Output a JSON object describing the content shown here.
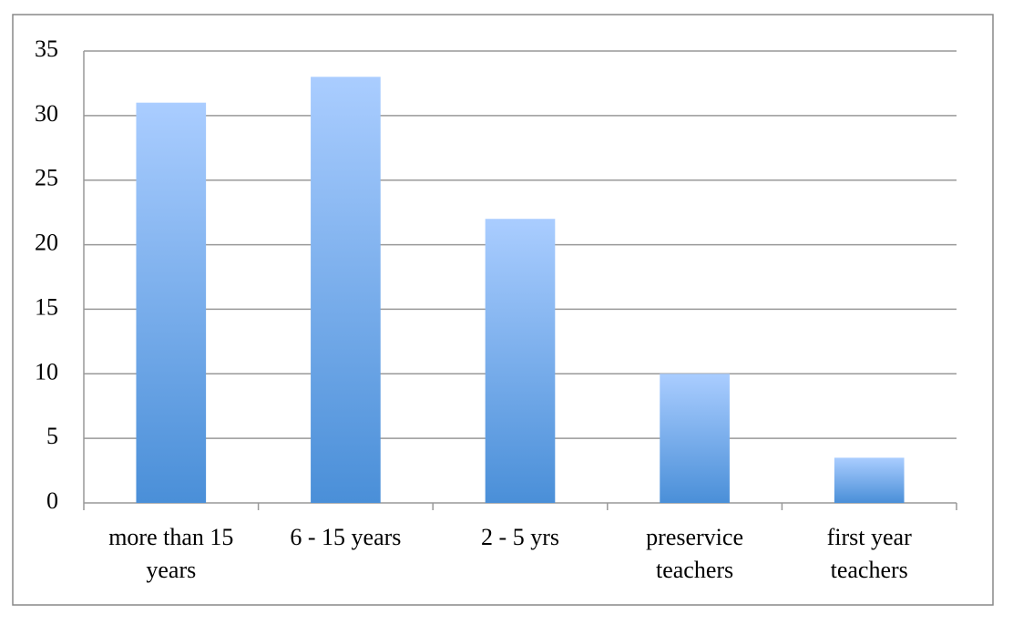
{
  "chart_data": {
    "type": "bar",
    "categories": [
      "more than 15 years",
      "6 - 15 years",
      "2 - 5 yrs",
      "preservice teachers",
      "first year teachers"
    ],
    "values": [
      31,
      33,
      22,
      10,
      3.5
    ],
    "gradient": [
      "#aacdff",
      "#4a8fd8"
    ],
    "ylim": [
      0,
      35
    ],
    "yticks": [
      0,
      5,
      10,
      15,
      20,
      25,
      30,
      35
    ],
    "grid": true
  }
}
